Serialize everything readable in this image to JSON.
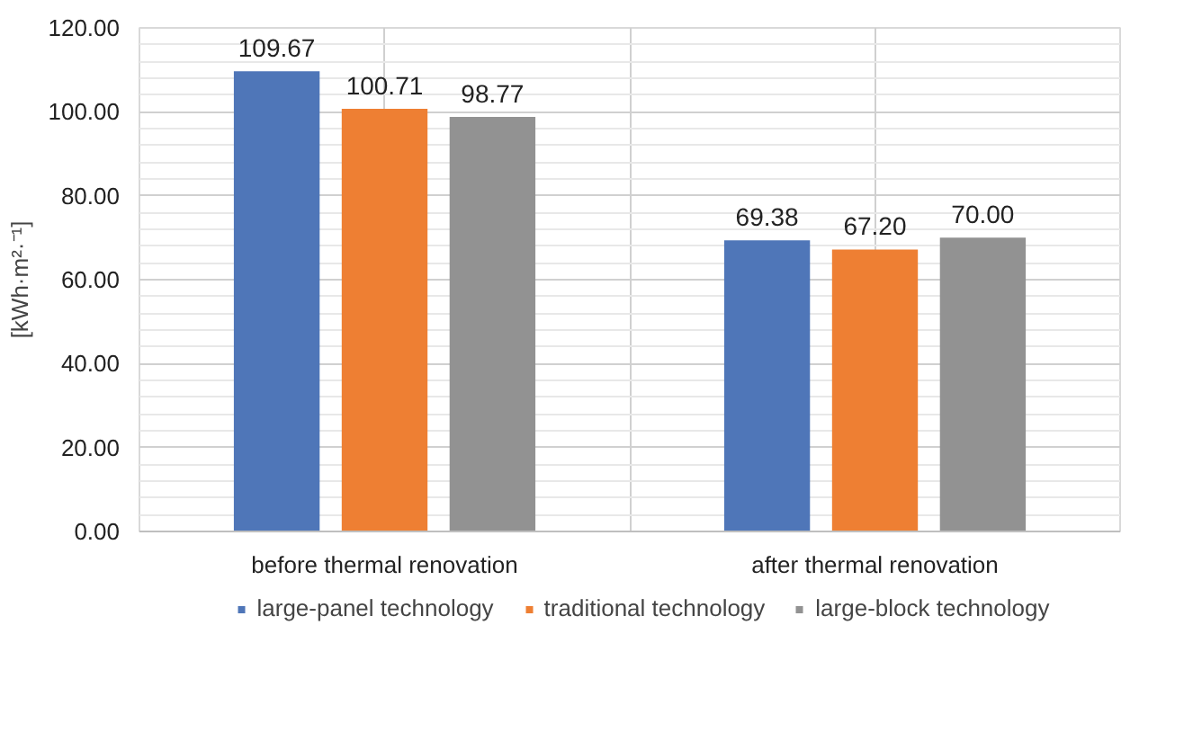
{
  "chart_data": {
    "type": "bar",
    "ylabel": "[kWh·m²·⁻¹]",
    "categories": [
      "before thermal renovation",
      "after thermal renovation"
    ],
    "series": [
      {
        "name": "large-panel technology",
        "color": "#4f76b8",
        "values": [
          109.67,
          69.38
        ],
        "value_labels": [
          "109.67",
          "69.38"
        ]
      },
      {
        "name": "traditional technology",
        "color": "#ee7f33",
        "values": [
          100.71,
          67.2
        ],
        "value_labels": [
          "100.71",
          "67.20"
        ]
      },
      {
        "name": "large-block technology",
        "color": "#929292",
        "values": [
          98.77,
          70.0
        ],
        "value_labels": [
          "98.77",
          "70.00"
        ]
      }
    ],
    "ylim": [
      0,
      120
    ],
    "yticks": [
      {
        "value": 0,
        "label": "0.00"
      },
      {
        "value": 20,
        "label": "20.00"
      },
      {
        "value": 40,
        "label": "40.00"
      },
      {
        "value": 60,
        "label": "60.00"
      },
      {
        "value": 80,
        "label": "80.00"
      },
      {
        "value": 100,
        "label": "100.00"
      },
      {
        "value": 120,
        "label": "120.00"
      }
    ],
    "grid": true,
    "legend": "bottom"
  }
}
